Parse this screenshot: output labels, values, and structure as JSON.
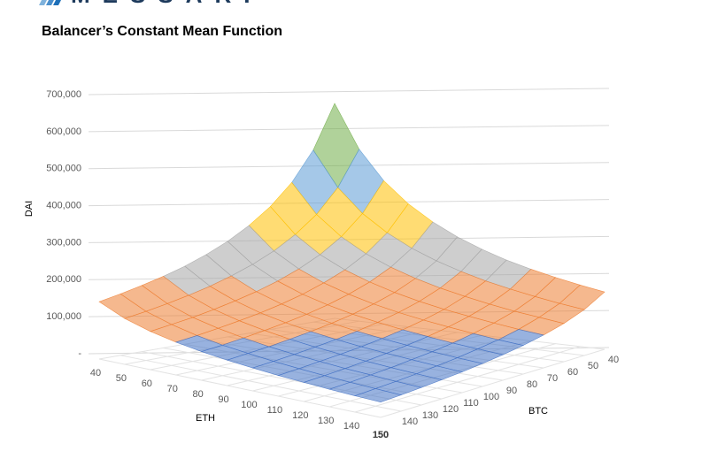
{
  "logo": "MESSARI",
  "chart_data": {
    "type": "surface",
    "title": "Balancer’s Constant Mean Function",
    "x_label": "ETH",
    "y_label": "BTC",
    "z_label": "DAI",
    "x": [
      40,
      50,
      60,
      70,
      80,
      90,
      100,
      110,
      120,
      130,
      140,
      150
    ],
    "y": [
      40,
      50,
      60,
      70,
      80,
      90,
      100,
      110,
      120,
      130,
      140,
      150
    ],
    "z": [
      [
        675000,
        540000,
        450000,
        386000,
        338000,
        300000,
        270000,
        245000,
        225000,
        208000,
        193000,
        180000
      ],
      [
        540000,
        432000,
        360000,
        309000,
        270000,
        240000,
        216000,
        196000,
        180000,
        166000,
        154000,
        144000
      ],
      [
        450000,
        360000,
        300000,
        257000,
        225000,
        200000,
        180000,
        164000,
        150000,
        138000,
        129000,
        120000
      ],
      [
        386000,
        309000,
        257000,
        220000,
        193000,
        171000,
        154000,
        140000,
        129000,
        119000,
        110000,
        103000
      ],
      [
        338000,
        270000,
        225000,
        193000,
        169000,
        150000,
        135000,
        123000,
        113000,
        104000,
        96000,
        90000
      ],
      [
        300000,
        240000,
        200000,
        171000,
        150000,
        133000,
        120000,
        109000,
        100000,
        92000,
        86000,
        80000
      ],
      [
        270000,
        216000,
        180000,
        154000,
        135000,
        120000,
        108000,
        98000,
        90000,
        83000,
        77000,
        72000
      ],
      [
        245000,
        196000,
        164000,
        140000,
        123000,
        109000,
        98000,
        89000,
        82000,
        76000,
        70000,
        65000
      ],
      [
        225000,
        180000,
        150000,
        129000,
        113000,
        100000,
        90000,
        82000,
        75000,
        69000,
        64000,
        60000
      ],
      [
        208000,
        166000,
        138000,
        119000,
        104000,
        92000,
        83000,
        76000,
        69000,
        64000,
        59000,
        55000
      ],
      [
        193000,
        154000,
        129000,
        110000,
        96000,
        86000,
        77000,
        70000,
        64000,
        59000,
        55000,
        51000
      ],
      [
        180000,
        144000,
        120000,
        103000,
        90000,
        80000,
        72000,
        65000,
        60000,
        55000,
        51000,
        48000
      ]
    ],
    "zlim": [
      0,
      700000
    ],
    "zticks": [
      {
        "value": 0,
        "label": "-"
      },
      {
        "value": 100000,
        "label": "100,000"
      },
      {
        "value": 200000,
        "label": "200,000"
      },
      {
        "value": 300000,
        "label": "300,000"
      },
      {
        "value": 400000,
        "label": "400,000"
      },
      {
        "value": 500000,
        "label": "500,000"
      },
      {
        "value": 600000,
        "label": "600,000"
      },
      {
        "value": 700000,
        "label": "700,000"
      }
    ],
    "band_colors": [
      "#4472c4",
      "#ed7d31",
      "#a5a5a5",
      "#ffc000",
      "#5b9bd5",
      "#70ad47",
      "#264478"
    ],
    "grid": true
  }
}
